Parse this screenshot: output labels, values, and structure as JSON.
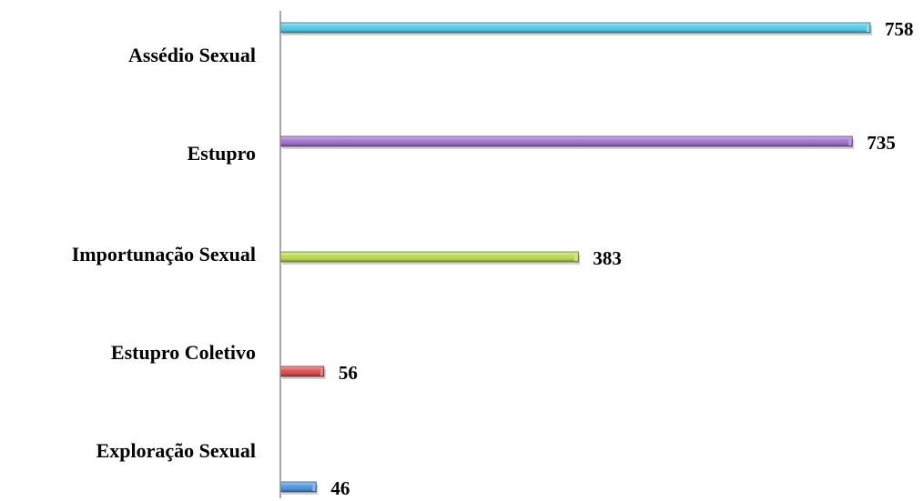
{
  "chart_data": {
    "type": "bar",
    "orientation": "horizontal",
    "categories": [
      "Assédio Sexual",
      "Estupro",
      "Importunação Sexual",
      "Estupro Coletivo",
      "Exploração Sexual"
    ],
    "values": [
      758,
      735,
      383,
      56,
      46
    ],
    "value_labels": [
      "758",
      "735",
      "383",
      "56",
      "46"
    ],
    "bar_colors": [
      "#4bc6e3",
      "#9b6cc9",
      "#b7d54a",
      "#d6474a",
      "#4a8fd8"
    ],
    "xlim": [
      0,
      758
    ],
    "grid": false,
    "legend": "none"
  }
}
